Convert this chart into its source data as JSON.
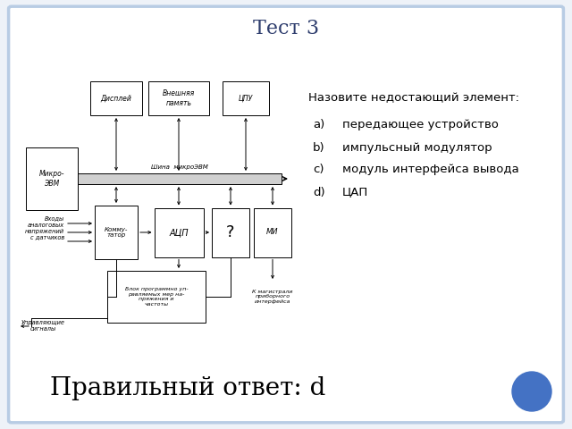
{
  "title": "Тест 3",
  "question": "Назовите недостающий элемент:",
  "options": [
    {
      "label": "a)",
      "text": "передающее устройство"
    },
    {
      "label": "b)",
      "text": "импульсный модулятор"
    },
    {
      "label": "c)",
      "text": "модуль интерфейса вывода"
    },
    {
      "label": "d)",
      "text": "ЦАП"
    }
  ],
  "answer_text": "Правильный ответ: d",
  "bg_color": "#eef2f8",
  "slide_bg": "#ffffff",
  "border_color": "#b8cce4",
  "answer_fontsize": 20,
  "title_fontsize": 16,
  "question_fontsize": 9.5,
  "option_fontsize": 9.5,
  "circle_color": "#4472c4",
  "title_color": "#2f3e6e"
}
